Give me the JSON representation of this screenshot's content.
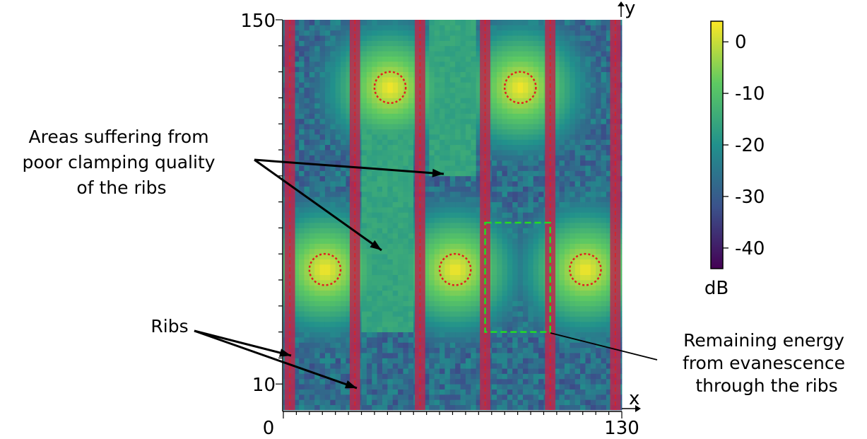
{
  "chart_data": {
    "type": "heatmap",
    "x_axis": {
      "label": "x",
      "range": [
        0,
        130
      ],
      "tick_labels": [
        "0",
        "130"
      ]
    },
    "y_axis": {
      "label": "y",
      "range": [
        0,
        150
      ],
      "tick_labels": [
        "10",
        "150"
      ]
    },
    "colorbar": {
      "unit": "dB",
      "range": [
        -44,
        4
      ],
      "ticks": [
        0,
        -10,
        -20,
        -30,
        -40
      ],
      "tick_labels": [
        "0",
        "-10",
        "-20",
        "-30",
        "-40"
      ]
    },
    "ribs_x": [
      2.5,
      27.5,
      52.5,
      77.5,
      102.5,
      127.5
    ],
    "rib_width": 4,
    "sources": [
      {
        "x": 41,
        "y": 124,
        "radius": 6
      },
      {
        "x": 91,
        "y": 124,
        "radius": 6
      },
      {
        "x": 16,
        "y": 54,
        "radius": 6
      },
      {
        "x": 66,
        "y": 54,
        "radius": 6
      },
      {
        "x": 116,
        "y": 54,
        "radius": 6
      }
    ],
    "remaining_energy_box": {
      "x_range": [
        77.5,
        102.5
      ],
      "y_range": [
        30,
        72
      ]
    },
    "annotations": [
      {
        "id": "clamping",
        "lines": [
          "Areas suffering from",
          "poor clamping quality",
          "of the ribs"
        ]
      },
      {
        "id": "ribs",
        "lines": [
          "Ribs"
        ]
      },
      {
        "id": "evanescence",
        "lines": [
          "Remaining energy",
          "from evanescence",
          "through the ribs"
        ]
      }
    ],
    "colors": {
      "rib": "#c0264d",
      "source_circle": "#e02020",
      "box": "#22dd22",
      "colormap": [
        "#440154",
        "#3b528b",
        "#21918c",
        "#5ec962",
        "#fde725"
      ]
    }
  }
}
